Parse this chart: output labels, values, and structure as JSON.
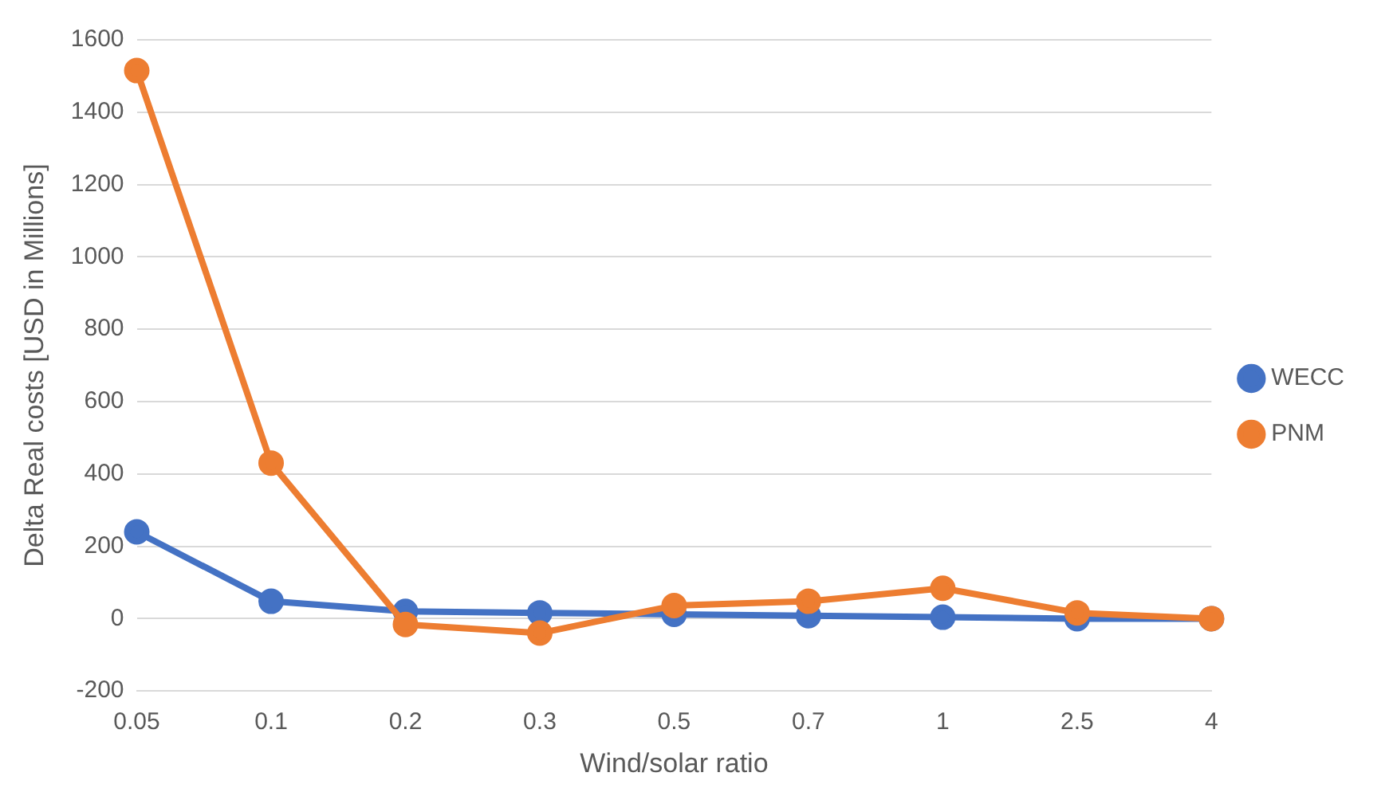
{
  "chart_data": {
    "type": "line",
    "xlabel": "Wind/solar ratio",
    "ylabel": "Delta Real costs [USD in Millions]",
    "categories": [
      "0.05",
      "0.1",
      "0.2",
      "0.3",
      "0.5",
      "0.7",
      "1",
      "2.5",
      "4"
    ],
    "series": [
      {
        "name": "WECC",
        "color": "#4472c4",
        "values": [
          240,
          48,
          20,
          16,
          12,
          8,
          4,
          0,
          0
        ]
      },
      {
        "name": "PNM",
        "color": "#ed7d31",
        "values": [
          1515,
          430,
          -16,
          -40,
          36,
          48,
          84,
          16,
          0
        ]
      }
    ],
    "ylim": [
      -200,
      1600
    ],
    "yticks": [
      -200,
      0,
      200,
      400,
      600,
      800,
      1000,
      1200,
      1400,
      1600
    ],
    "grid": "y",
    "legend": "right",
    "marker": "circle",
    "line_style": "solid"
  }
}
